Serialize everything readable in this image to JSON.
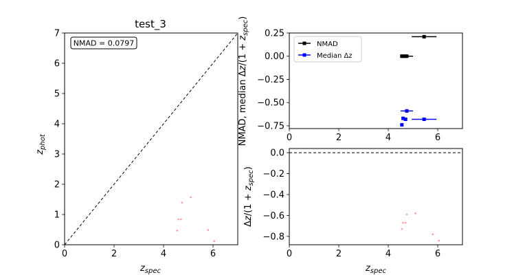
{
  "chart_data": [
    {
      "type": "scatter",
      "panel": "main",
      "title": "test_3",
      "xlabel": "z_spec",
      "ylabel": "z_phot",
      "xlim": [
        0,
        7
      ],
      "ylim": [
        0,
        7
      ],
      "xticks": [
        "0",
        "2",
        "4",
        "6"
      ],
      "yticks": [
        "0",
        "1",
        "2",
        "3",
        "4",
        "5",
        "6",
        "7"
      ],
      "annotation": "NMAD = 0.0797",
      "reference_line": "y = x (dashed)",
      "point_color": "#ff9999",
      "series": [
        {
          "x": [
            4.55,
            4.6,
            4.7,
            4.75,
            5.1,
            5.8,
            6.05
          ],
          "y": [
            0.47,
            0.84,
            0.84,
            1.39,
            1.57,
            0.49,
            0.12
          ]
        }
      ]
    },
    {
      "type": "errorbar",
      "panel": "top-right",
      "xlabel": "",
      "ylabel": "NMAD, median Δz/(1 + z_spec)",
      "xlim": [
        0,
        7
      ],
      "ylim": [
        -0.78,
        0.25
      ],
      "xticks": [
        "0",
        "2",
        "4",
        "6"
      ],
      "yticks": [
        "0.25",
        "0.00",
        "−0.25",
        "−0.50",
        "−0.75"
      ],
      "legend": "upper-left",
      "series": [
        {
          "name": "NMAD",
          "color": "#000000",
          "points": [
            {
              "x": 4.55,
              "y": 0.0,
              "xerr": 0.02
            },
            {
              "x": 4.6,
              "y": 0.0,
              "xerr": 0.02
            },
            {
              "x": 4.7,
              "y": 0.0,
              "xerr": 0.03
            },
            {
              "x": 4.75,
              "y": 0.0,
              "xerr": 0.25
            },
            {
              "x": 5.45,
              "y": 0.21,
              "xerr": 0.5
            }
          ]
        },
        {
          "name": "Median Δz",
          "color": "#0000ff",
          "points": [
            {
              "x": 4.55,
              "y": -0.74,
              "xerr": 0.02
            },
            {
              "x": 4.6,
              "y": -0.67,
              "xerr": 0.02
            },
            {
              "x": 4.7,
              "y": -0.68,
              "xerr": 0.03
            },
            {
              "x": 4.75,
              "y": -0.59,
              "xerr": 0.25
            },
            {
              "x": 5.45,
              "y": -0.68,
              "xerr": 0.5
            }
          ]
        }
      ]
    },
    {
      "type": "scatter",
      "panel": "bottom-right",
      "xlabel": "z_spec",
      "ylabel": "Δz/(1 + z_spec)",
      "xlim": [
        0,
        7
      ],
      "ylim": [
        -0.88,
        0.04
      ],
      "xticks": [
        "0",
        "2",
        "4",
        "6"
      ],
      "yticks": [
        "0.0",
        "−0.2",
        "−0.4",
        "−0.6",
        "−0.8"
      ],
      "reference_line": "y = 0 (dashed)",
      "point_color": "#ff9999",
      "series": [
        {
          "x": [
            4.55,
            4.6,
            4.7,
            4.75,
            5.1,
            5.8,
            6.05
          ],
          "y": [
            -0.73,
            -0.67,
            -0.67,
            -0.59,
            -0.58,
            -0.78,
            -0.84
          ]
        }
      ]
    }
  ]
}
